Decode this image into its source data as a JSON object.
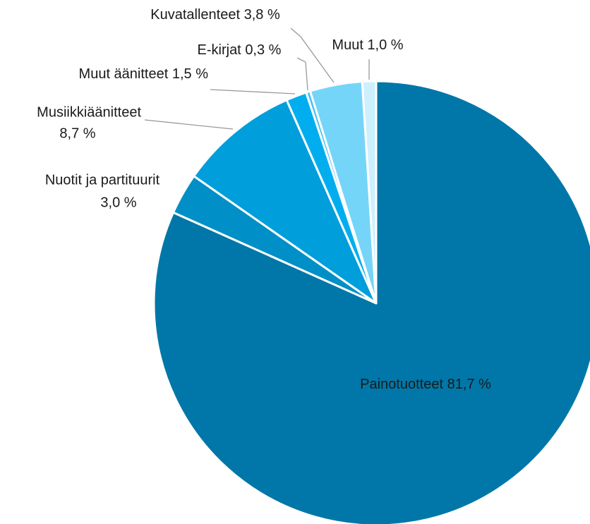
{
  "chart_data": {
    "type": "pie",
    "categories": [
      "Painotuotteet",
      "Nuotit ja partituurit",
      "Musiikkiäänitteet",
      "Muut äänitteet",
      "E-kirjat",
      "Kuvatallenteet",
      "Muut"
    ],
    "values": [
      81.7,
      3.0,
      8.7,
      1.5,
      0.3,
      3.8,
      1.0
    ],
    "value_labels": [
      "81,7 %",
      "3,0 %",
      "8,7 %",
      "1,5 %",
      "0,3 %",
      "3,8 %",
      "1,0 %"
    ],
    "colors": [
      "#0077a8",
      "#008fc6",
      "#009edb",
      "#00aeef",
      "#45c2f2",
      "#75d5f8",
      "#cdf0ff"
    ]
  }
}
